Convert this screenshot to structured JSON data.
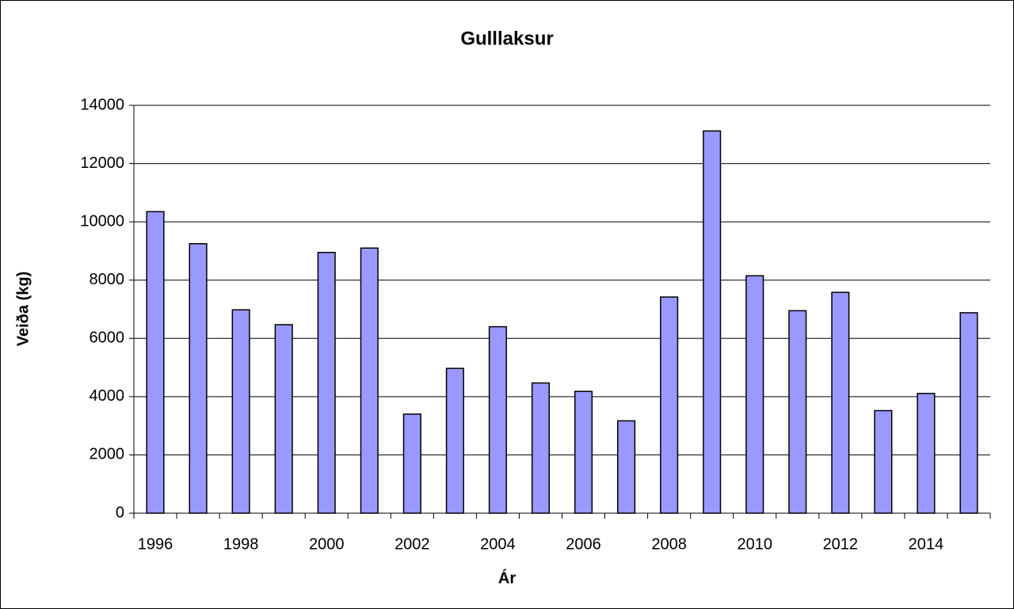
{
  "chart_data": {
    "type": "bar",
    "title": "Gulllaksur",
    "x_label": "Ár",
    "y_label": "Veiða (kg)",
    "categories": [
      "1996",
      null,
      "1998",
      null,
      "2000",
      null,
      "2002",
      null,
      "2004",
      null,
      "2006",
      null,
      "2008",
      null,
      "2010",
      null,
      "2012",
      null,
      "2014",
      null
    ],
    "values": [
      10350,
      9250,
      6980,
      6470,
      8950,
      9100,
      3400,
      4970,
      6400,
      4470,
      4180,
      3170,
      7420,
      13120,
      8150,
      6950,
      7580,
      3520,
      4110,
      6880
    ],
    "color": "#9999ff",
    "ylim": [
      0,
      14000
    ],
    "yticks": [
      0,
      2000,
      4000,
      6000,
      8000,
      10000,
      12000,
      14000
    ],
    "grid": true
  }
}
